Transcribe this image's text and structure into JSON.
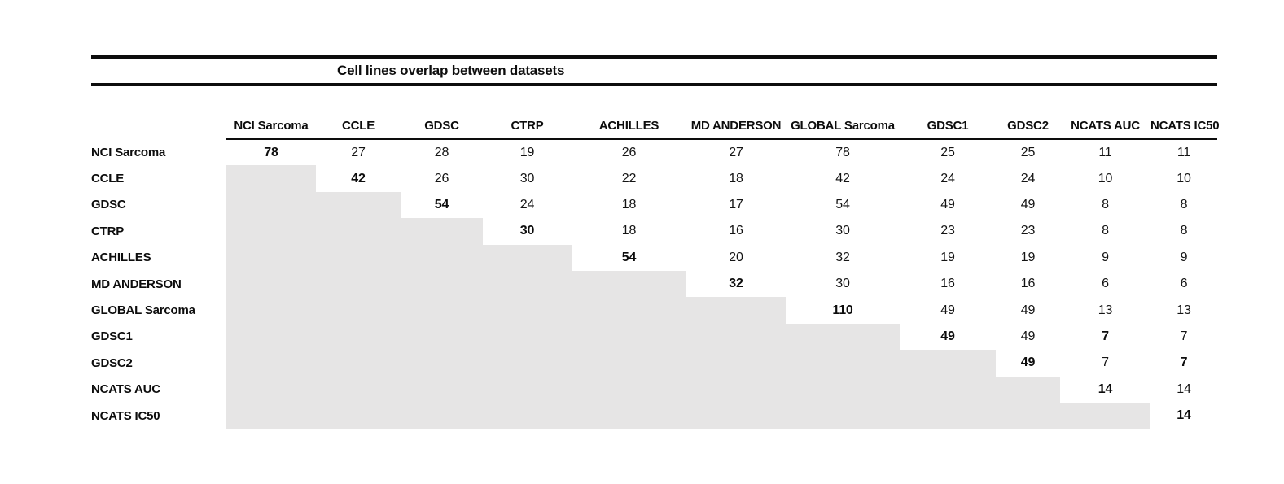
{
  "table": {
    "title": "Cell lines overlap between datasets",
    "colors": {
      "shade": "#e6e5e5",
      "rule": "#0d0d0d"
    },
    "columns": [
      "NCI Sarcoma",
      "CCLE",
      "GDSC",
      "CTRP",
      "ACHILLES",
      "MD ANDERSON",
      "GLOBAL Sarcoma",
      "GDSC1",
      "GDSC2",
      "NCATS AUC",
      "NCATS IC50"
    ],
    "rows": [
      {
        "label": "NCI Sarcoma",
        "cells": [
          {
            "v": "78",
            "b": true
          },
          {
            "v": "27"
          },
          {
            "v": "28"
          },
          {
            "v": "19"
          },
          {
            "v": "26"
          },
          {
            "v": "27"
          },
          {
            "v": "78"
          },
          {
            "v": "25"
          },
          {
            "v": "25"
          },
          {
            "v": "11"
          },
          {
            "v": "11"
          }
        ]
      },
      {
        "label": "CCLE",
        "cells": [
          {
            "s": true
          },
          {
            "v": "42",
            "b": true
          },
          {
            "v": "26"
          },
          {
            "v": "30"
          },
          {
            "v": "22"
          },
          {
            "v": "18"
          },
          {
            "v": "42"
          },
          {
            "v": "24"
          },
          {
            "v": "24"
          },
          {
            "v": "10"
          },
          {
            "v": "10"
          }
        ]
      },
      {
        "label": "GDSC",
        "cells": [
          {
            "s": true
          },
          {
            "s": true
          },
          {
            "v": "54",
            "b": true
          },
          {
            "v": "24"
          },
          {
            "v": "18"
          },
          {
            "v": "17"
          },
          {
            "v": "54"
          },
          {
            "v": "49"
          },
          {
            "v": "49"
          },
          {
            "v": "8"
          },
          {
            "v": "8"
          }
        ]
      },
      {
        "label": "CTRP",
        "cells": [
          {
            "s": true
          },
          {
            "s": true
          },
          {
            "s": true
          },
          {
            "v": "30",
            "b": true
          },
          {
            "v": "18"
          },
          {
            "v": "16"
          },
          {
            "v": "30"
          },
          {
            "v": "23"
          },
          {
            "v": "23"
          },
          {
            "v": "8"
          },
          {
            "v": "8"
          }
        ]
      },
      {
        "label": "ACHILLES",
        "cells": [
          {
            "s": true
          },
          {
            "s": true
          },
          {
            "s": true
          },
          {
            "s": true
          },
          {
            "v": "54",
            "b": true
          },
          {
            "v": "20"
          },
          {
            "v": "32"
          },
          {
            "v": "19"
          },
          {
            "v": "19"
          },
          {
            "v": "9"
          },
          {
            "v": "9"
          }
        ]
      },
      {
        "label": "MD ANDERSON",
        "cells": [
          {
            "s": true
          },
          {
            "s": true
          },
          {
            "s": true
          },
          {
            "s": true
          },
          {
            "s": true
          },
          {
            "v": "32",
            "b": true
          },
          {
            "v": "30"
          },
          {
            "v": "16"
          },
          {
            "v": "16"
          },
          {
            "v": "6"
          },
          {
            "v": "6"
          }
        ]
      },
      {
        "label": "GLOBAL Sarcoma",
        "cells": [
          {
            "s": true
          },
          {
            "s": true
          },
          {
            "s": true
          },
          {
            "s": true
          },
          {
            "s": true
          },
          {
            "s": true
          },
          {
            "v": "110",
            "b": true
          },
          {
            "v": "49"
          },
          {
            "v": "49"
          },
          {
            "v": "13"
          },
          {
            "v": "13"
          }
        ]
      },
      {
        "label": "GDSC1",
        "cells": [
          {
            "s": true
          },
          {
            "s": true
          },
          {
            "s": true
          },
          {
            "s": true
          },
          {
            "s": true
          },
          {
            "s": true
          },
          {
            "s": true
          },
          {
            "v": "49",
            "b": true
          },
          {
            "v": "49"
          },
          {
            "v": "7",
            "b": true
          },
          {
            "v": "7"
          }
        ]
      },
      {
        "label": "GDSC2",
        "cells": [
          {
            "s": true
          },
          {
            "s": true
          },
          {
            "s": true
          },
          {
            "s": true
          },
          {
            "s": true
          },
          {
            "s": true
          },
          {
            "s": true
          },
          {
            "s": true
          },
          {
            "v": "49",
            "b": true
          },
          {
            "v": "7"
          },
          {
            "v": "7",
            "b": true
          }
        ]
      },
      {
        "label": "NCATS AUC",
        "cells": [
          {
            "s": true
          },
          {
            "s": true
          },
          {
            "s": true
          },
          {
            "s": true
          },
          {
            "s": true
          },
          {
            "s": true
          },
          {
            "s": true
          },
          {
            "s": true
          },
          {
            "s": true
          },
          {
            "v": "14",
            "b": true
          },
          {
            "v": "14"
          }
        ]
      },
      {
        "label": "NCATS IC50",
        "cells": [
          {
            "s": true
          },
          {
            "s": true
          },
          {
            "s": true
          },
          {
            "s": true
          },
          {
            "s": true
          },
          {
            "s": true
          },
          {
            "s": true
          },
          {
            "s": true
          },
          {
            "s": true
          },
          {
            "s": true
          },
          {
            "v": "14",
            "b": true
          }
        ]
      }
    ]
  }
}
